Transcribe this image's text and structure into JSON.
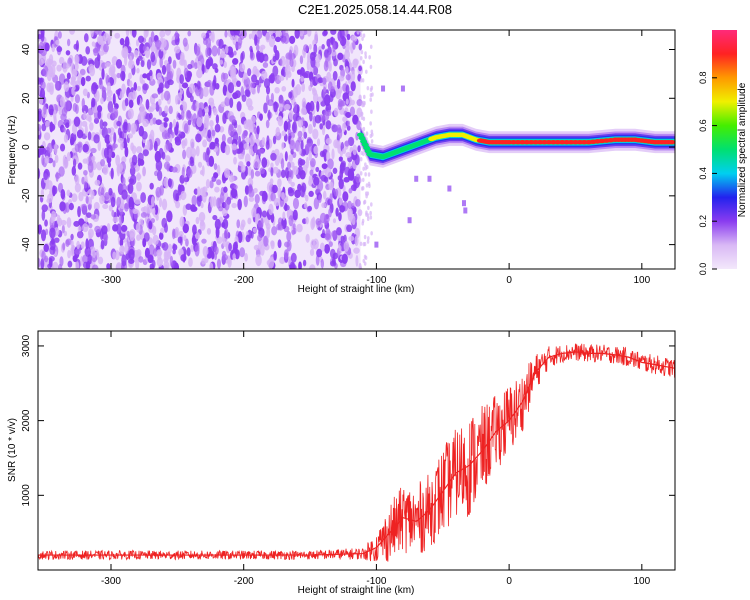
{
  "title": "C2E1.2025.058.14.44.R08",
  "colors": {
    "axis": "#000000",
    "snr_line": "#ee2222",
    "spectrogram_noise": "#8a3cf0"
  },
  "chart_data": [
    {
      "type": "heatmap",
      "xlabel": "Height of straight line (km)",
      "ylabel": "Frequency (Hz)",
      "xlim": [
        -355,
        125
      ],
      "ylim": [
        -50,
        48
      ],
      "xticks": [
        -300,
        -200,
        -100,
        0,
        100
      ],
      "yticks": [
        -40,
        -20,
        0,
        20,
        40
      ],
      "colorbar": {
        "label": "Normalized spectral amplitude",
        "range": [
          0,
          1
        ],
        "ticks": [
          "0.0",
          "0.2",
          "0.4",
          "0.6",
          "0.8"
        ],
        "colormap": [
          "#f3e8fb",
          "#d9b8f5",
          "#8a3cf0",
          "#2222ee",
          "#00d0f0",
          "#00e070",
          "#44ee00",
          "#f0f000",
          "#ff9900",
          "#ff2222",
          "#ff2a7a"
        ]
      },
      "noise_region": {
        "x_range": [
          -355,
          -112
        ],
        "y_range": [
          -50,
          48
        ],
        "amplitude_range": [
          0.02,
          0.15
        ]
      },
      "signal_ridge": [
        {
          "x": -112,
          "y": 5
        },
        {
          "x": -105,
          "y": -3
        },
        {
          "x": -95,
          "y": -4
        },
        {
          "x": -85,
          "y": -2
        },
        {
          "x": -75,
          "y": 0
        },
        {
          "x": -65,
          "y": 2
        },
        {
          "x": -55,
          "y": 4
        },
        {
          "x": -45,
          "y": 5
        },
        {
          "x": -35,
          "y": 5
        },
        {
          "x": -25,
          "y": 3
        },
        {
          "x": -15,
          "y": 2
        },
        {
          "x": 0,
          "y": 2
        },
        {
          "x": 20,
          "y": 2
        },
        {
          "x": 40,
          "y": 2
        },
        {
          "x": 60,
          "y": 2
        },
        {
          "x": 80,
          "y": 3
        },
        {
          "x": 95,
          "y": 3
        },
        {
          "x": 110,
          "y": 2
        },
        {
          "x": 125,
          "y": 2
        }
      ],
      "sparse_points": [
        {
          "x": -95,
          "y": 24
        },
        {
          "x": -80,
          "y": 24
        },
        {
          "x": -70,
          "y": -13
        },
        {
          "x": -60,
          "y": -13
        },
        {
          "x": -45,
          "y": -17
        },
        {
          "x": -34,
          "y": -23
        },
        {
          "x": -33,
          "y": -26
        },
        {
          "x": -100,
          "y": -40
        },
        {
          "x": -75,
          "y": -30
        }
      ]
    },
    {
      "type": "line",
      "xlabel": "Height of straight line (km)",
      "ylabel": "SNR (10 * v/v)",
      "xlim": [
        -355,
        125
      ],
      "ylim": [
        0,
        3200
      ],
      "xticks": [
        -300,
        -200,
        -100,
        0,
        100
      ],
      "yticks": [
        1000,
        2000,
        3000
      ],
      "series": [
        {
          "x": [
            -355,
            -300,
            -250,
            -200,
            -150,
            -110,
            -100,
            -90,
            -80,
            -70,
            -60,
            -50,
            -40,
            -30,
            -20,
            -10,
            0,
            10,
            20,
            30,
            40,
            50,
            60,
            70,
            80,
            90,
            100,
            110,
            125
          ],
          "y": [
            200,
            200,
            200,
            200,
            200,
            220,
            300,
            500,
            700,
            650,
            800,
            1050,
            1300,
            1400,
            1600,
            1850,
            2000,
            2250,
            2650,
            2850,
            2900,
            2920,
            2900,
            2900,
            2880,
            2850,
            2780,
            2750,
            2700
          ],
          "noise_amplitude": [
            60,
            60,
            60,
            60,
            60,
            80,
            200,
            400,
            450,
            500,
            500,
            600,
            600,
            700,
            600,
            500,
            500,
            400,
            250,
            150,
            120,
            120,
            120,
            120,
            120,
            130,
            130,
            130,
            130
          ]
        }
      ]
    }
  ]
}
